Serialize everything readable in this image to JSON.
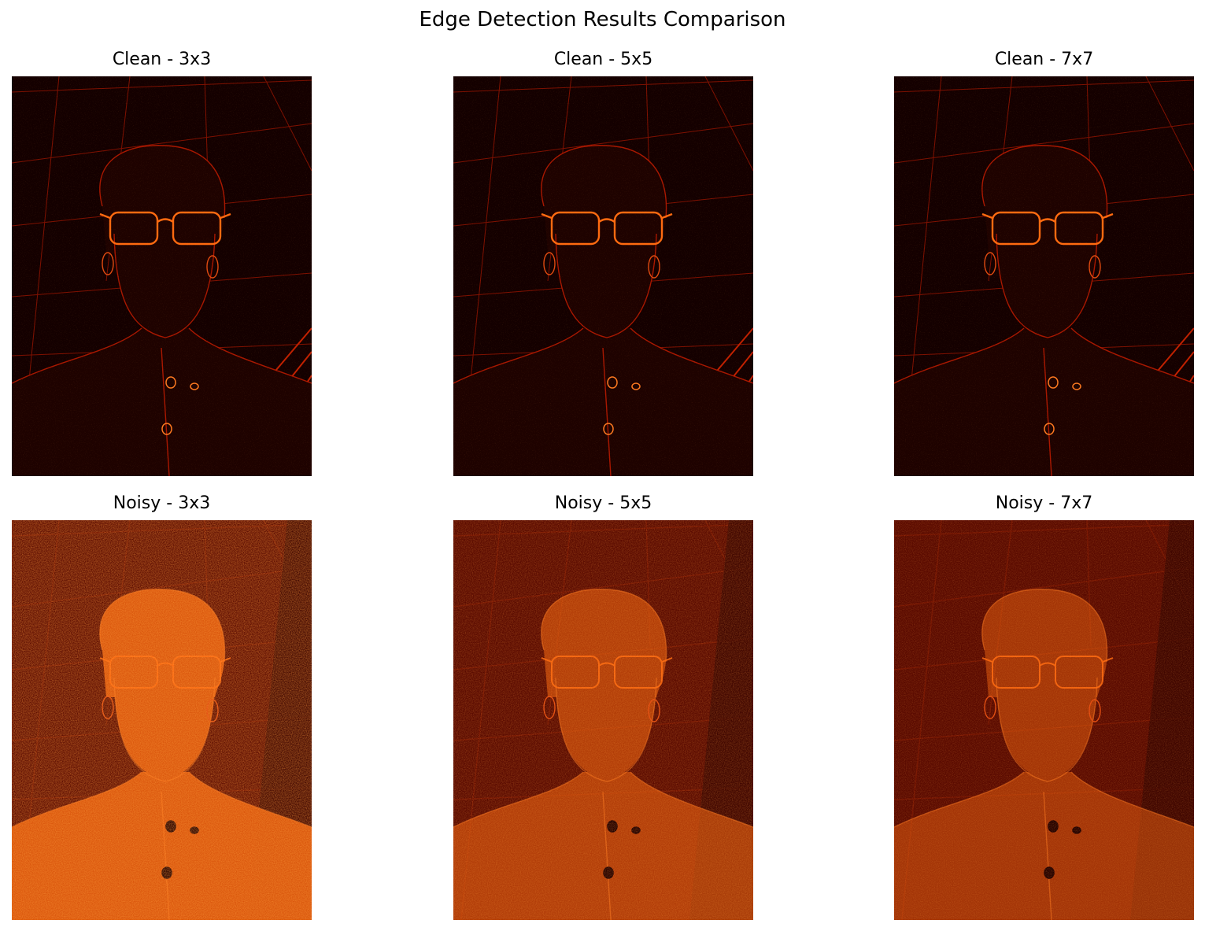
{
  "figure": {
    "title": "Edge Detection Results Comparison"
  },
  "panels": [
    {
      "title": "Clean - 3x3",
      "variant": "clean",
      "intensity": 0.18
    },
    {
      "title": "Clean - 5x5",
      "variant": "clean",
      "intensity": 0.22
    },
    {
      "title": "Clean - 7x7",
      "variant": "clean",
      "intensity": 0.25
    },
    {
      "title": "Noisy - 3x3",
      "variant": "noisy",
      "intensity": 0.95
    },
    {
      "title": "Noisy - 5x5",
      "variant": "noisy",
      "intensity": 0.65
    },
    {
      "title": "Noisy - 7x7",
      "variant": "noisy",
      "intensity": 0.55
    }
  ],
  "colors": {
    "clean_background": "#140000",
    "noisy_background": "#5a0a00",
    "edge_bright": "#ff6a10",
    "edge_dim": "#8a1200",
    "skin_noisy": "#e0580c"
  },
  "colormap": "hot"
}
